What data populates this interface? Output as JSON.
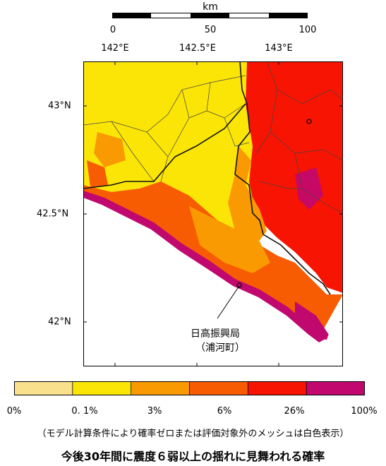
{
  "scale_bar": {
    "unit": "km",
    "ticks": [
      "0",
      "50",
      "100"
    ]
  },
  "axes": {
    "lon_labels": [
      "142°E",
      "142.5°E",
      "143°E"
    ],
    "lat_labels": [
      "43°N",
      "42.5°N",
      "42°N"
    ]
  },
  "office": {
    "name": "日高振興局",
    "town": "（浦河町）"
  },
  "legend": {
    "tick_labels": [
      "0%",
      "0. 1%",
      "3%",
      "6%",
      "26%",
      "100%"
    ],
    "colors": [
      "#f9e08c",
      "#fbe507",
      "#f99a02",
      "#f75c02",
      "#f71402",
      "#c0086f"
    ]
  },
  "note": "（モデル計算条件により確率ゼロまたは評価対象外のメッシュは白色表示）",
  "title": "今後30年間に震度６弱以上の揺れに見舞われる確率"
}
